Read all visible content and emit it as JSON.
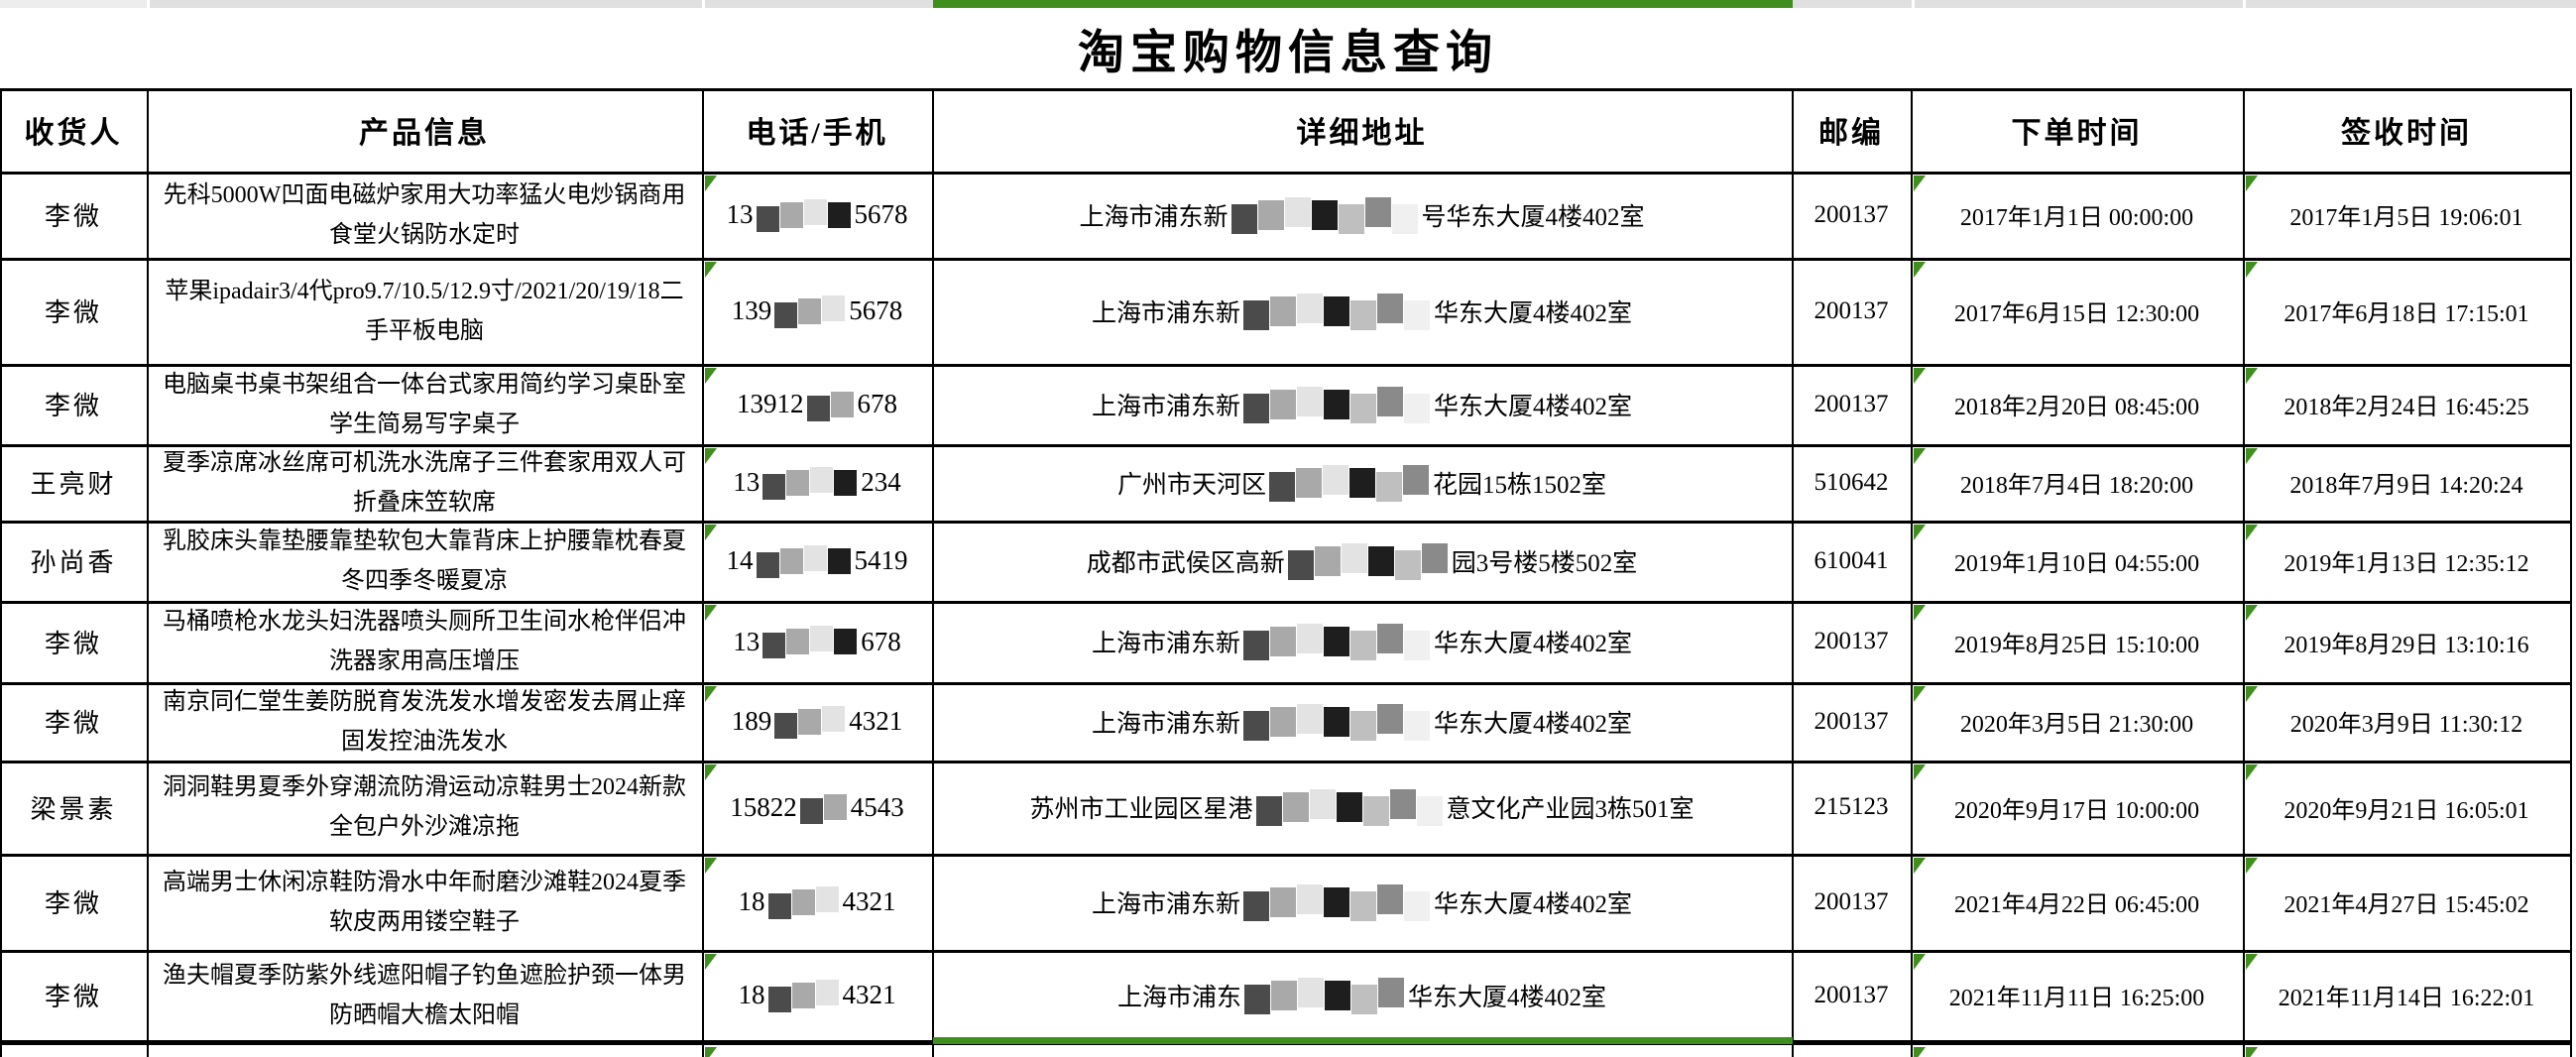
{
  "app": {
    "title": "淘宝购物信息查询"
  },
  "colors": {
    "accent_green": "#3f8e1e",
    "grid": "#000000",
    "strip_gray": "#e0e0e0",
    "strip_gray_light": "#ececec",
    "strip_separator": "#ffffff",
    "background": "#ffffff",
    "text": "#000000"
  },
  "sheet_strip": {
    "selected_column_label": "详细地址",
    "selected_range_is_column": true
  },
  "table": {
    "columns": [
      {
        "key": "recipient",
        "label": "收货人"
      },
      {
        "key": "product",
        "label": "产品信息"
      },
      {
        "key": "phone",
        "label": "电话/手机"
      },
      {
        "key": "address",
        "label": "详细地址"
      },
      {
        "key": "zip",
        "label": "邮编"
      },
      {
        "key": "order_time",
        "label": "下单时间"
      },
      {
        "key": "sign_time",
        "label": "签收时间"
      }
    ],
    "error_indicator_columns": [
      "phone",
      "order_time",
      "sign_time"
    ],
    "rows": [
      {
        "recipient": "李微",
        "product": "先科5000W凹面电磁炉家用大功率猛火电炒锅商用食堂火锅防水定时",
        "phone": {
          "visible_start": "13",
          "redacted_blocks": 4,
          "visible_end": "5678"
        },
        "address": {
          "visible_start": "上海市浦东新",
          "redacted_blocks": 7,
          "visible_end": "号华东大厦4楼402室"
        },
        "zip": "200137",
        "order_time": "2017年1月1日 00:00:00",
        "sign_time": "2017年1月5日 19:06:01"
      },
      {
        "recipient": "李微",
        "product": "苹果ipadair3/4代pro9.7/10.5/12.9寸/2021/20/19/18二手平板电脑",
        "phone": {
          "visible_start": "139",
          "redacted_blocks": 3,
          "visible_end": "5678"
        },
        "address": {
          "visible_start": "上海市浦东新",
          "redacted_blocks": 7,
          "visible_end": "华东大厦4楼402室"
        },
        "zip": "200137",
        "order_time": "2017年6月15日 12:30:00",
        "sign_time": "2017年6月18日 17:15:01"
      },
      {
        "recipient": "李微",
        "product": "电脑桌书桌书架组合一体台式家用简约学习桌卧室学生简易写字桌子",
        "phone": {
          "visible_start": "13912",
          "redacted_blocks": 2,
          "visible_end": "678"
        },
        "address": {
          "visible_start": "上海市浦东新",
          "redacted_blocks": 7,
          "visible_end": "华东大厦4楼402室"
        },
        "zip": "200137",
        "order_time": "2018年2月20日 08:45:00",
        "sign_time": "2018年2月24日 16:45:25"
      },
      {
        "recipient": "王亮财",
        "product": "夏季凉席冰丝席可机洗水洗席子三件套家用双人可折叠床笠软席",
        "phone": {
          "visible_start": "13",
          "redacted_blocks": 4,
          "visible_end": "234"
        },
        "address": {
          "visible_start": "广州市天河区",
          "redacted_blocks": 6,
          "visible_end": "花园15栋1502室"
        },
        "zip": "510642",
        "order_time": "2018年7月4日 18:20:00",
        "sign_time": "2018年7月9日 14:20:24"
      },
      {
        "recipient": "孙尚香",
        "product": "乳胶床头靠垫腰靠垫软包大靠背床上护腰靠枕春夏冬四季冬暖夏凉",
        "phone": {
          "visible_start": "14",
          "redacted_blocks": 4,
          "visible_end": "5419"
        },
        "address": {
          "visible_start": "成都市武侯区高新",
          "redacted_blocks": 6,
          "visible_end": "园3号楼5楼502室"
        },
        "zip": "610041",
        "order_time": "2019年1月10日 04:55:00",
        "sign_time": "2019年1月13日 12:35:12"
      },
      {
        "recipient": "李微",
        "product": "马桶喷枪水龙头妇洗器喷头厕所卫生间水枪伴侣冲洗器家用高压增压",
        "phone": {
          "visible_start": "13",
          "redacted_blocks": 4,
          "visible_end": "678"
        },
        "address": {
          "visible_start": "上海市浦东新",
          "redacted_blocks": 7,
          "visible_end": "华东大厦4楼402室"
        },
        "zip": "200137",
        "order_time": "2019年8月25日 15:10:00",
        "sign_time": "2019年8月29日 13:10:16"
      },
      {
        "recipient": "李微",
        "product": "南京同仁堂生姜防脱育发洗发水增发密发去屑止痒固发控油洗发水",
        "phone": {
          "visible_start": "189",
          "redacted_blocks": 3,
          "visible_end": "4321"
        },
        "address": {
          "visible_start": "上海市浦东新",
          "redacted_blocks": 7,
          "visible_end": "华东大厦4楼402室"
        },
        "zip": "200137",
        "order_time": "2020年3月5日 21:30:00",
        "sign_time": "2020年3月9日 11:30:12"
      },
      {
        "recipient": "梁景素",
        "product": "洞洞鞋男夏季外穿潮流防滑运动凉鞋男士2024新款全包户外沙滩凉拖",
        "phone": {
          "visible_start": "15822",
          "redacted_blocks": 2,
          "visible_end": "4543"
        },
        "address": {
          "visible_start": "苏州市工业园区星港",
          "redacted_blocks": 7,
          "visible_end": "意文化产业园3栋501室"
        },
        "zip": "215123",
        "order_time": "2020年9月17日 10:00:00",
        "sign_time": "2020年9月21日 16:05:01"
      },
      {
        "recipient": "李微",
        "product": "高端男士休闲凉鞋防滑水中年耐磨沙滩鞋2024夏季软皮两用镂空鞋子",
        "phone": {
          "visible_start": "18",
          "redacted_blocks": 3,
          "visible_end": "4321"
        },
        "address": {
          "visible_start": "上海市浦东新",
          "redacted_blocks": 7,
          "visible_end": "华东大厦4楼402室"
        },
        "zip": "200137",
        "order_time": "2021年4月22日 06:45:00",
        "sign_time": "2021年4月27日 15:45:02"
      },
      {
        "recipient": "李微",
        "product": "渔夫帽夏季防紫外线遮阳帽子钓鱼遮脸护颈一体男防晒帽大檐太阳帽",
        "phone": {
          "visible_start": "18",
          "redacted_blocks": 3,
          "visible_end": "4321"
        },
        "address": {
          "visible_start": "上海市浦东",
          "redacted_blocks": 6,
          "visible_end": "华东大厦4楼402室"
        },
        "zip": "200137",
        "order_time": "2021年11月11日 16:25:00",
        "sign_time": "2021年11月14日 16:22:01"
      }
    ],
    "partial_row": {
      "visible": true,
      "indicator_columns": [
        "phone",
        "order_time",
        "sign_time"
      ]
    }
  }
}
